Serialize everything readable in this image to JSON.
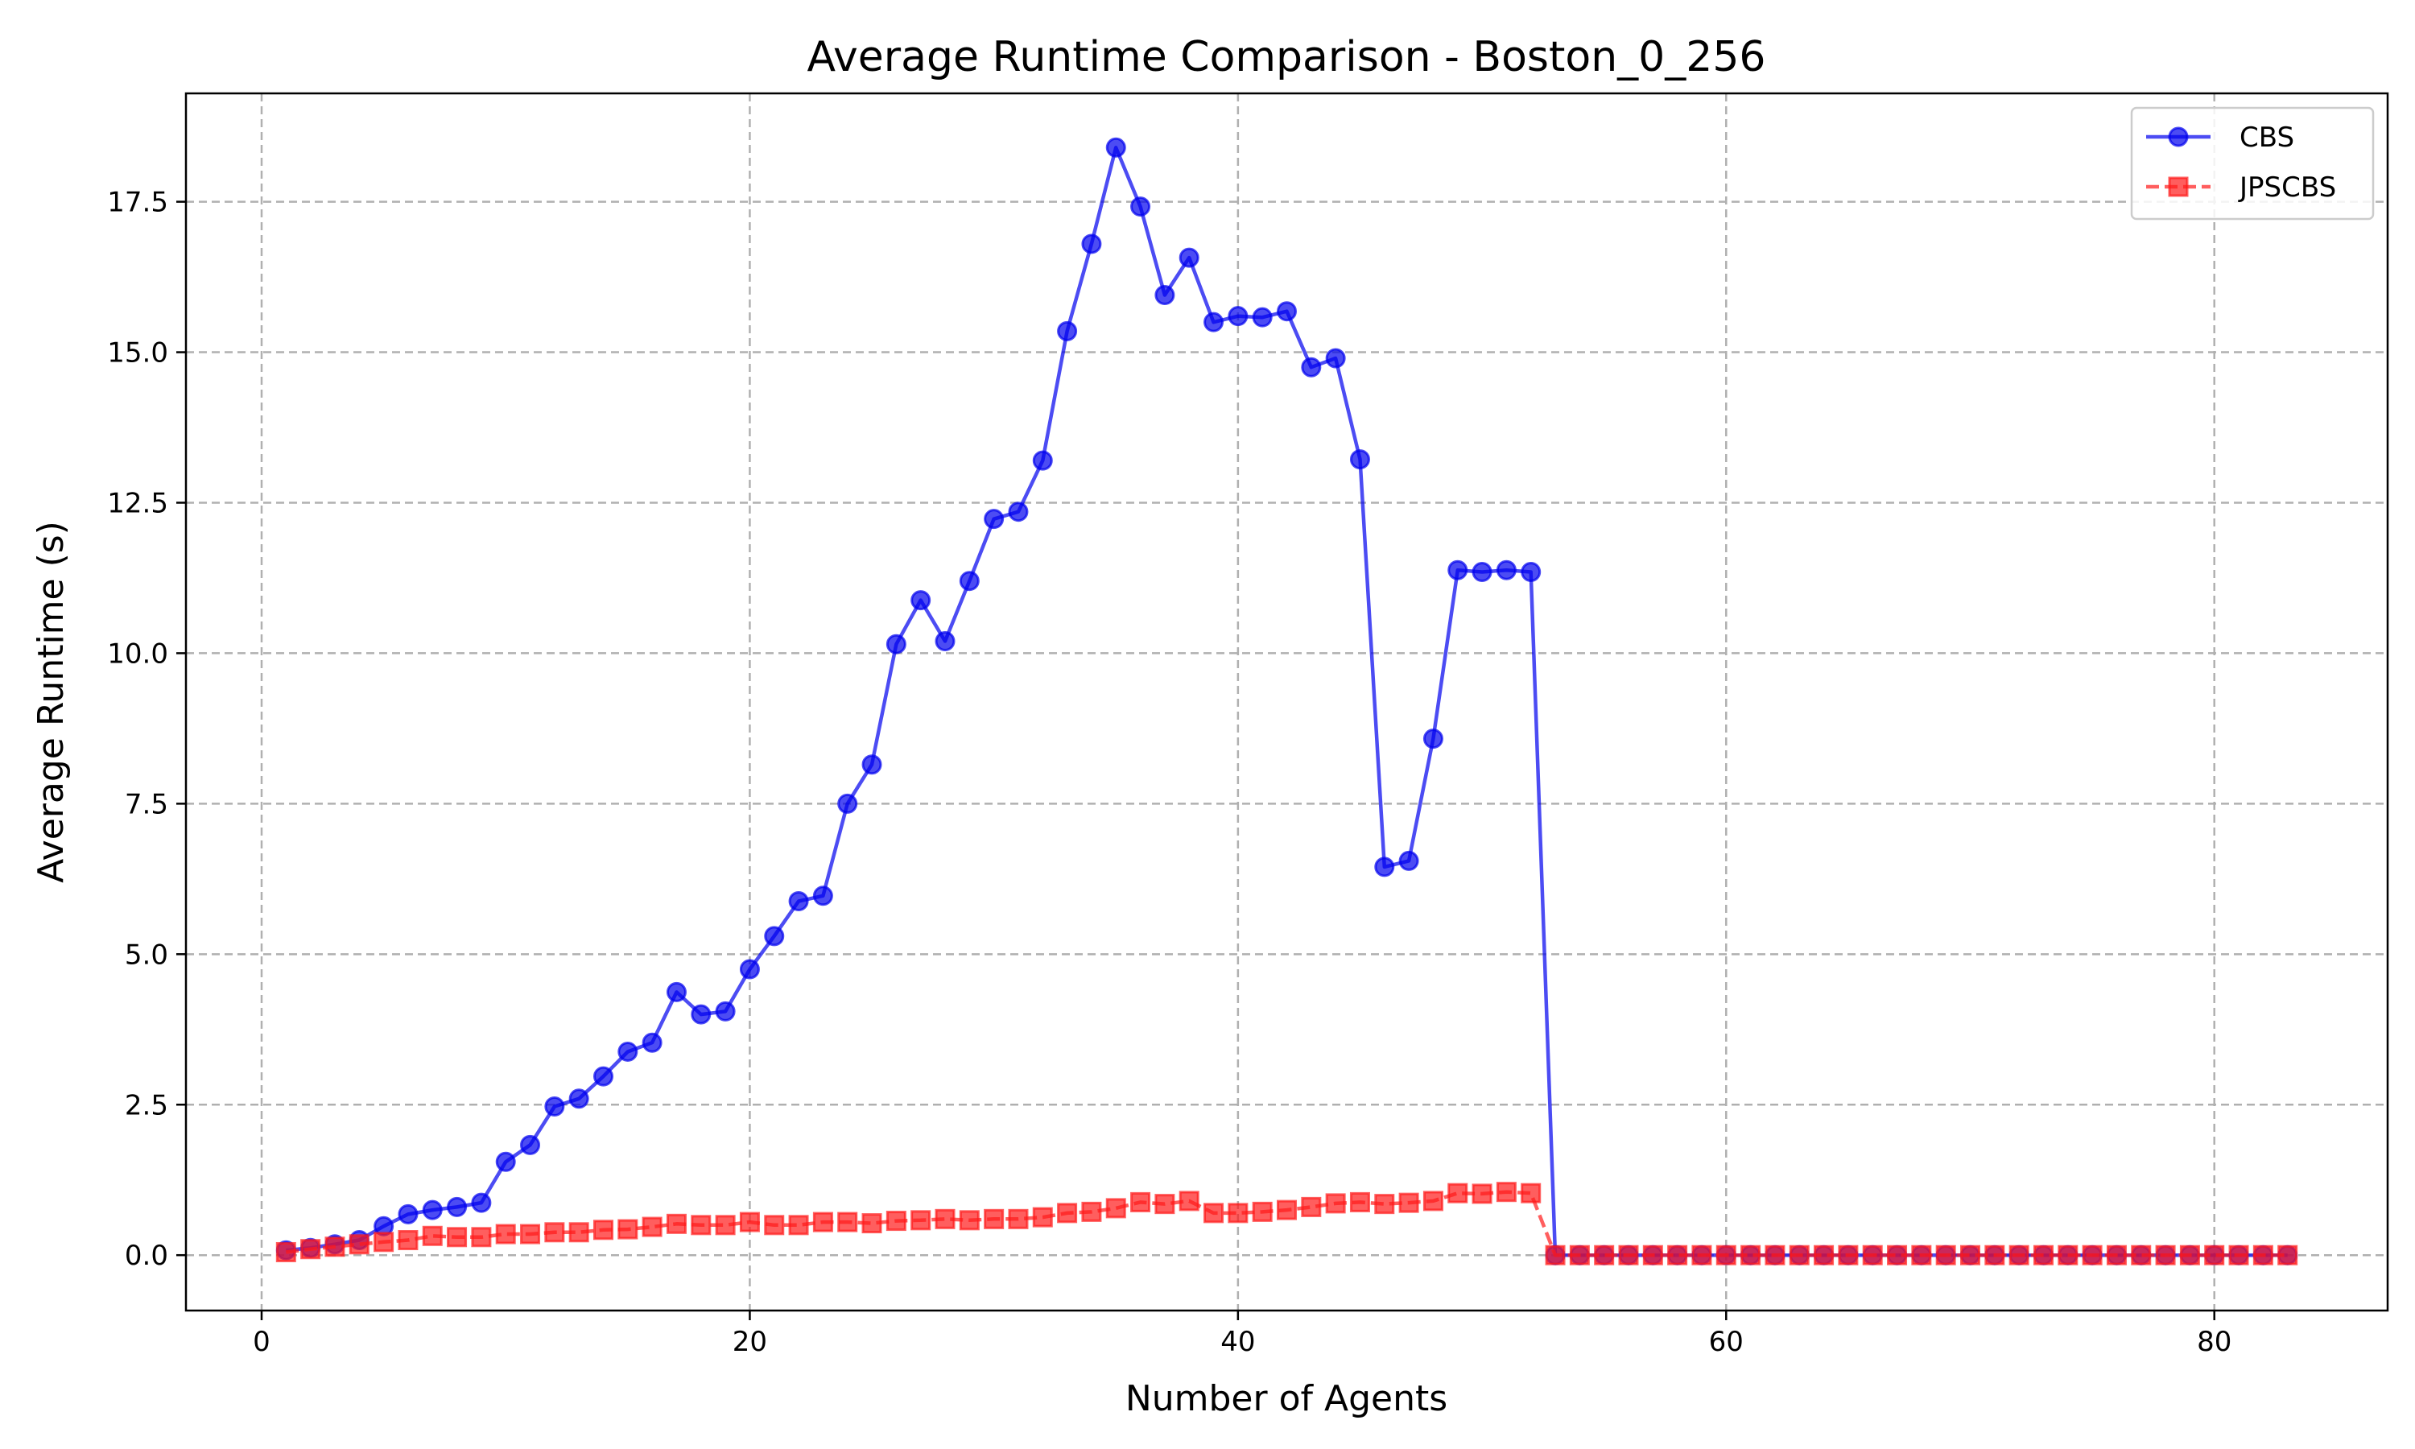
{
  "chart_data": {
    "type": "line",
    "title": "Average Runtime Comparison - Boston_0_256",
    "xlabel": "Number of Agents",
    "ylabel": "Average Runtime (s)",
    "xlim": [
      -3.1,
      87.1
    ],
    "ylim": [
      -0.92,
      19.3
    ],
    "xticks": [
      0,
      20,
      40,
      60,
      80
    ],
    "xtick_labels": [
      "0",
      "20",
      "40",
      "60",
      "80"
    ],
    "yticks": [
      0,
      2.5,
      5,
      7.5,
      10,
      12.5,
      15,
      17.5
    ],
    "ytick_labels": [
      "0.0",
      "2.5",
      "5.0",
      "7.5",
      "10.0",
      "12.5",
      "15.0",
      "17.5"
    ],
    "grid": true,
    "legend_position": "top-right",
    "series": [
      {
        "name": "CBS",
        "color": "#0000ee",
        "line_style": "solid",
        "marker": "circle",
        "x": [
          1,
          2,
          3,
          4,
          5,
          6,
          7,
          8,
          9,
          10,
          11,
          12,
          13,
          14,
          15,
          16,
          17,
          18,
          19,
          20,
          21,
          22,
          23,
          24,
          25,
          26,
          27,
          28,
          29,
          30,
          31,
          32,
          33,
          34,
          35,
          36,
          37,
          38,
          39,
          40,
          41,
          42,
          43,
          44,
          45,
          46,
          47,
          48,
          49,
          50,
          51,
          52,
          53,
          54,
          55,
          56,
          57,
          58,
          59,
          60,
          61,
          62,
          63,
          64,
          65,
          66,
          67,
          68,
          69,
          70,
          71,
          72,
          73,
          74,
          75,
          76,
          77,
          78,
          79,
          80,
          81,
          82,
          83
        ],
        "values": [
          0.08,
          0.12,
          0.18,
          0.25,
          0.48,
          0.68,
          0.75,
          0.8,
          0.87,
          1.55,
          1.83,
          2.47,
          2.6,
          2.97,
          3.38,
          3.53,
          4.37,
          4.0,
          4.05,
          4.75,
          5.3,
          5.88,
          5.97,
          7.5,
          8.15,
          10.15,
          10.88,
          10.2,
          11.2,
          12.23,
          12.35,
          13.2,
          15.35,
          16.8,
          18.4,
          17.42,
          15.95,
          16.57,
          15.5,
          15.6,
          15.58,
          15.68,
          14.75,
          14.9,
          13.22,
          6.45,
          6.55,
          8.58,
          11.38,
          11.35,
          11.38,
          11.35,
          0,
          0,
          0,
          0,
          0,
          0,
          0,
          0,
          0,
          0,
          0,
          0,
          0,
          0,
          0,
          0,
          0,
          0,
          0,
          0,
          0,
          0,
          0,
          0,
          0,
          0,
          0,
          0,
          0,
          0,
          0
        ]
      },
      {
        "name": "JPSCBS",
        "color": "#ff1a1a",
        "line_style": "dashed",
        "marker": "square",
        "x": [
          1,
          2,
          3,
          4,
          5,
          6,
          7,
          8,
          9,
          10,
          11,
          12,
          13,
          14,
          15,
          16,
          17,
          18,
          19,
          20,
          21,
          22,
          23,
          24,
          25,
          26,
          27,
          28,
          29,
          30,
          31,
          32,
          33,
          34,
          35,
          36,
          37,
          38,
          39,
          40,
          41,
          42,
          43,
          44,
          45,
          46,
          47,
          48,
          49,
          50,
          51,
          52,
          53,
          54,
          55,
          56,
          57,
          58,
          59,
          60,
          61,
          62,
          63,
          64,
          65,
          66,
          67,
          68,
          69,
          70,
          71,
          72,
          73,
          74,
          75,
          76,
          77,
          78,
          79,
          80,
          81,
          82,
          83
        ],
        "values": [
          0.05,
          0.1,
          0.14,
          0.18,
          0.22,
          0.25,
          0.32,
          0.3,
          0.3,
          0.35,
          0.35,
          0.38,
          0.38,
          0.42,
          0.43,
          0.47,
          0.52,
          0.5,
          0.5,
          0.55,
          0.5,
          0.5,
          0.55,
          0.55,
          0.53,
          0.57,
          0.58,
          0.6,
          0.58,
          0.6,
          0.6,
          0.63,
          0.7,
          0.72,
          0.78,
          0.88,
          0.85,
          0.9,
          0.7,
          0.7,
          0.72,
          0.75,
          0.8,
          0.86,
          0.88,
          0.85,
          0.87,
          0.9,
          1.03,
          1.02,
          1.05,
          1.03,
          0,
          0,
          0,
          0,
          0,
          0,
          0,
          0,
          0,
          0,
          0,
          0,
          0,
          0,
          0,
          0,
          0,
          0,
          0,
          0,
          0,
          0,
          0,
          0,
          0,
          0,
          0,
          0,
          0,
          0,
          0
        ]
      }
    ]
  }
}
